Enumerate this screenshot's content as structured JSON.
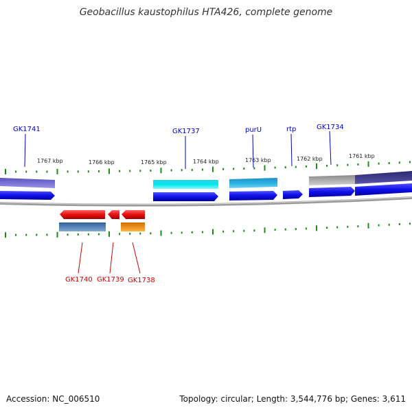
{
  "title": "Geobacillus kaustophilus HTA426, complete genome",
  "accession": "Accession: NC_006510",
  "summary": "Topology: circular; Length: 3,544,776 bp; Genes: 3,611",
  "ruler_labels": [
    "1767 kbp",
    "1766 kbp",
    "1765 kbp",
    "1764 kbp",
    "1763 kbp",
    "1762 kbp",
    "1761 kbp"
  ],
  "colors": {
    "forward_gene": "#1010e8",
    "reverse_gene": "#e81010",
    "backbone": "#777777",
    "tick": "#1a8c1a",
    "forward_label": "#0000bb",
    "reverse_label": "#cc0000"
  },
  "forward_labels": [
    "GK1741",
    "GK1737",
    "purU",
    "rtp",
    "GK1734"
  ],
  "reverse_labels": [
    "GK1740",
    "GK1739",
    "GK1738"
  ]
}
